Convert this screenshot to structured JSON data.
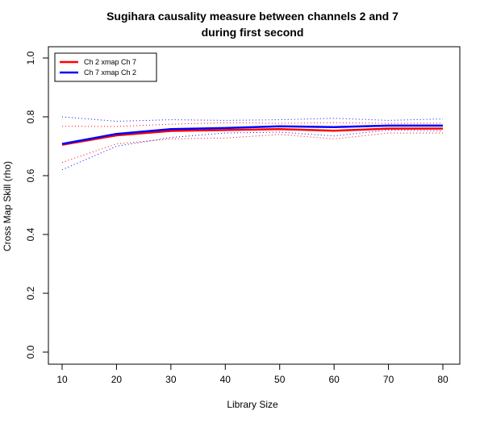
{
  "chart_data": {
    "type": "line",
    "title_line1": "Sugihara causality measure between channels  2 and 7",
    "title_line2": "during first second",
    "xlabel": "Library Size",
    "ylabel": "Cross Map Skill (rho)",
    "xlim": [
      10,
      80
    ],
    "ylim": [
      0,
      1
    ],
    "x_ticks": [
      "10",
      "20",
      "30",
      "40",
      "50",
      "60",
      "70",
      "80"
    ],
    "y_ticks": [
      "0.0",
      "0.2",
      "0.4",
      "0.6",
      "0.8",
      "1.0"
    ],
    "x": [
      10,
      20,
      30,
      40,
      50,
      60,
      70,
      80
    ],
    "legend_position": "top-left",
    "grid": false,
    "series": [
      {
        "name": "Ch 2 xmap Ch 7",
        "color": "#ff0000",
        "values": [
          0.705,
          0.737,
          0.752,
          0.755,
          0.758,
          0.753,
          0.76,
          0.76
        ],
        "lower": [
          0.645,
          0.708,
          0.725,
          0.728,
          0.74,
          0.725,
          0.745,
          0.745
        ],
        "upper": [
          0.768,
          0.767,
          0.775,
          0.78,
          0.778,
          0.78,
          0.778,
          0.778
        ]
      },
      {
        "name": "Ch 7  xmap Ch 2",
        "color": "#0000ff",
        "values": [
          0.708,
          0.742,
          0.758,
          0.762,
          0.768,
          0.765,
          0.77,
          0.77
        ],
        "lower": [
          0.62,
          0.7,
          0.73,
          0.745,
          0.748,
          0.735,
          0.755,
          0.752
        ],
        "upper": [
          0.8,
          0.785,
          0.79,
          0.788,
          0.79,
          0.795,
          0.788,
          0.793
        ]
      }
    ]
  }
}
